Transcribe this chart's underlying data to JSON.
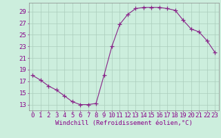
{
  "x": [
    0,
    1,
    2,
    3,
    4,
    5,
    6,
    7,
    8,
    9,
    10,
    11,
    12,
    13,
    14,
    15,
    16,
    17,
    18,
    19,
    20,
    21,
    22,
    23
  ],
  "y": [
    18.0,
    17.2,
    16.2,
    15.5,
    14.5,
    13.5,
    13.0,
    13.0,
    13.2,
    18.0,
    23.0,
    26.8,
    28.5,
    29.5,
    29.7,
    29.7,
    29.7,
    29.5,
    29.2,
    27.5,
    26.0,
    25.5,
    24.0,
    22.0
  ],
  "line_color": "#882288",
  "marker": "+",
  "marker_size": 4,
  "bg_color": "#cceedd",
  "grid_color": "#aaccbb",
  "xlabel": "Windchill (Refroidissement éolien,°C)",
  "ylabel_ticks": [
    13,
    15,
    17,
    19,
    21,
    23,
    25,
    27,
    29
  ],
  "xlim": [
    -0.5,
    23.5
  ],
  "ylim": [
    12.0,
    30.5
  ],
  "tick_fontsize": 6.5,
  "xlabel_fontsize": 6.5
}
